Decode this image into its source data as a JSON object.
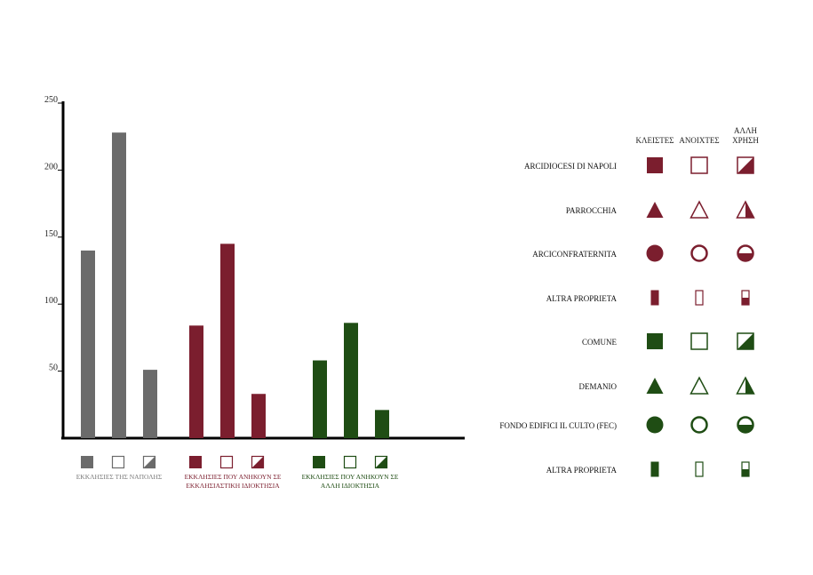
{
  "colors": {
    "gray": "#6b6b6b",
    "maroon": "#7b1e2e",
    "green": "#1f4d14",
    "axis": "#000000",
    "label_gray": "#7a7a7a"
  },
  "chart_data": {
    "type": "bar",
    "ylim": [
      0,
      250
    ],
    "yticks": [
      50,
      100,
      150,
      200,
      250
    ],
    "ytick_labels": [
      "50",
      "100",
      "150",
      "200",
      "250"
    ],
    "grid": false,
    "groups": [
      {
        "label_lines": [
          "ΕΚΚΛΗΣΙΕΣ ΤΗΣ ΝΑΠΟΛΗΣ"
        ],
        "color_key": "gray",
        "values": [
          140,
          228,
          51
        ]
      },
      {
        "label_lines": [
          "ΕΚΚΛΗΣΙΕΣ ΠΟΥ ΑΝΗΚΟΥΝ ΣΕ",
          "ΕΚΚΛΗΣΙΑΣΤΙΚΗ ΙΔΙΟΚΤΗΣΙΑ"
        ],
        "color_key": "maroon",
        "values": [
          84,
          145,
          33
        ]
      },
      {
        "label_lines": [
          "ΕΚΚΛΗΣΙΕΣ ΠΟΥ ΑΝΗΚΟΥΝ ΣΕ",
          "ΑΛΛΗ ΙΔΙΟΚΤΗΣΙΑ"
        ],
        "color_key": "green",
        "values": [
          58,
          86,
          21
        ]
      }
    ],
    "bar_styles": [
      "filled",
      "empty",
      "half"
    ]
  },
  "legend": {
    "columns": [
      {
        "lines": [
          "ΚΛΕΙΣΤΕΣ"
        ]
      },
      {
        "lines": [
          "ΑΝΟΙΧΤΕΣ"
        ]
      },
      {
        "lines": [
          "ΑΛΛΗ",
          "ΧΡΗΣΗ"
        ]
      }
    ],
    "rows": [
      {
        "label": "ARCIDIOCESI DI NAPOLI",
        "shape": "square",
        "color_key": "maroon"
      },
      {
        "label": "PARROCCHIA",
        "shape": "triangle",
        "color_key": "maroon"
      },
      {
        "label": "ARCICONFRATERNITA",
        "shape": "circle",
        "color_key": "maroon"
      },
      {
        "label": "ALTRA PROPRIETA",
        "shape": "rect",
        "color_key": "maroon"
      },
      {
        "label": "COMUNE",
        "shape": "square",
        "color_key": "green"
      },
      {
        "label": "DEMANIO",
        "shape": "triangle",
        "color_key": "green"
      },
      {
        "label": "FONDO EDIFICI IL CULTO (FEC)",
        "shape": "circle",
        "color_key": "green"
      },
      {
        "label": "ALTRA PROPRIETA",
        "shape": "rect",
        "color_key": "green"
      }
    ]
  }
}
